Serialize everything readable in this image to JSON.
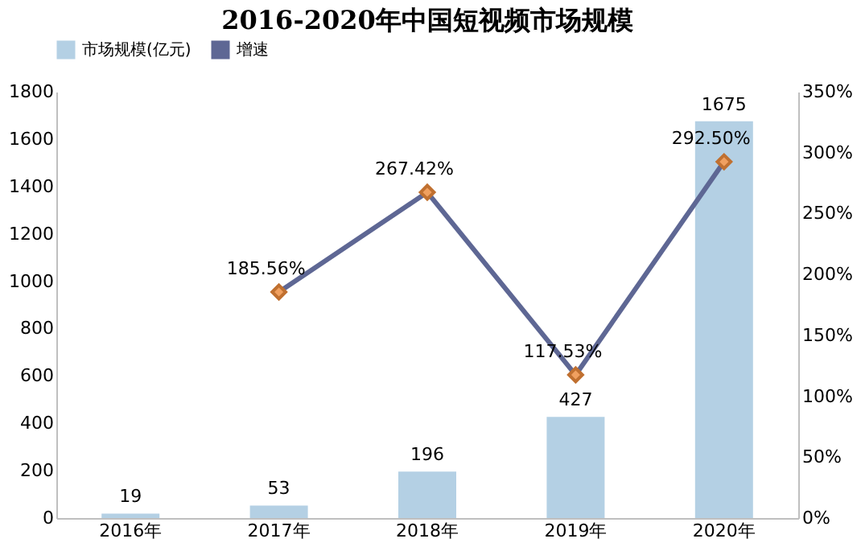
{
  "chart_data": {
    "type": "bar",
    "title": "2016-2020年中国短视频市场规模",
    "categories": [
      "2016年",
      "2017年",
      "2018年",
      "2019年",
      "2020年"
    ],
    "series": [
      {
        "name": "市场规模(亿元)",
        "color": "#b4d0e4",
        "values": [
          19,
          53,
          196,
          427,
          1675
        ],
        "value_labels": [
          "19",
          "53",
          "196",
          "427",
          "1675"
        ]
      },
      {
        "name": "增速",
        "type": "line",
        "axis": "y2",
        "color": "#5e6794",
        "marker": "diamond",
        "line_style": "solid",
        "values": [
          null,
          185.56,
          267.42,
          117.53,
          292.5
        ],
        "value_labels": [
          null,
          "185.56%",
          "267.42%",
          "117.53%",
          "292.50%"
        ]
      }
    ],
    "ylim": [
      0,
      1800
    ],
    "yticks": [
      0,
      200,
      400,
      600,
      800,
      1000,
      1200,
      1400,
      1600,
      1800
    ],
    "y2lim": [
      0,
      350
    ],
    "y2ticks": [
      {
        "value": 0,
        "label": "0%"
      },
      {
        "value": 50,
        "label": "50%"
      },
      {
        "value": 100,
        "label": "100%"
      },
      {
        "value": 150,
        "label": "150%"
      },
      {
        "value": 200,
        "label": "200%"
      },
      {
        "value": 250,
        "label": "250%"
      },
      {
        "value": 300,
        "label": "300%"
      },
      {
        "value": 350,
        "label": "350%"
      }
    ],
    "legend": "top"
  }
}
